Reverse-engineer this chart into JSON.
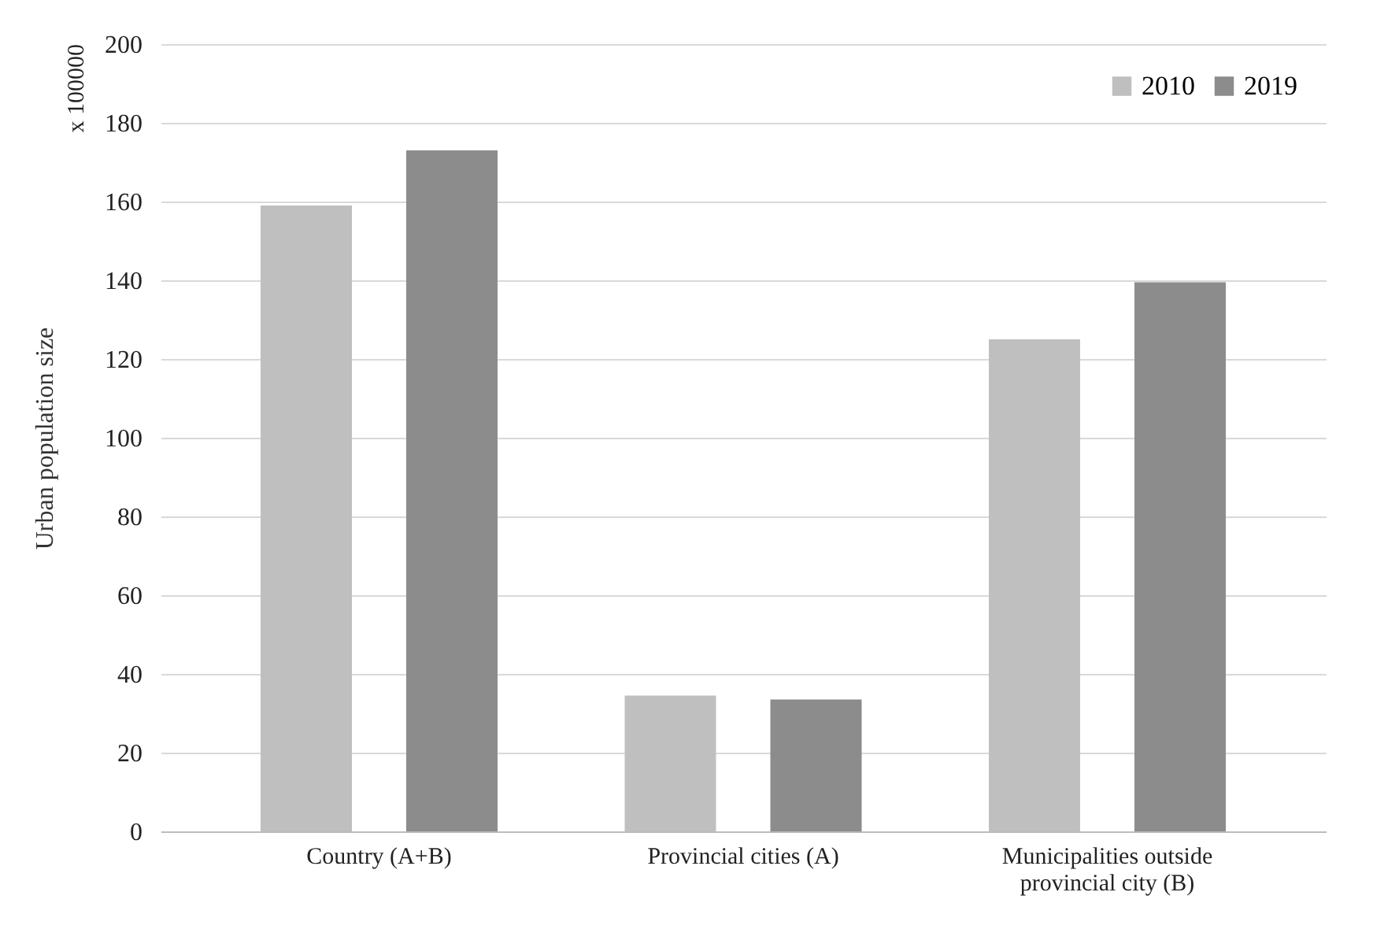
{
  "chart_data": {
    "type": "bar",
    "ylabel": "Urban population size",
    "annotations": [
      "x 100000"
    ],
    "categories": [
      "Country (A+B)",
      "Provincial cities (A)",
      "Municipalities outside provincial city (B)"
    ],
    "series": [
      {
        "name": "2010",
        "color": "#bfbfbf",
        "values": [
          159,
          34.5,
          125
        ]
      },
      {
        "name": "2019",
        "color": "#8c8c8c",
        "values": [
          173,
          33.5,
          139.5
        ]
      }
    ],
    "ylim": [
      0,
      200
    ],
    "yticks": [
      0,
      20,
      40,
      60,
      80,
      100,
      120,
      140,
      160,
      180,
      200
    ],
    "grid": "y",
    "legend": "top right"
  }
}
